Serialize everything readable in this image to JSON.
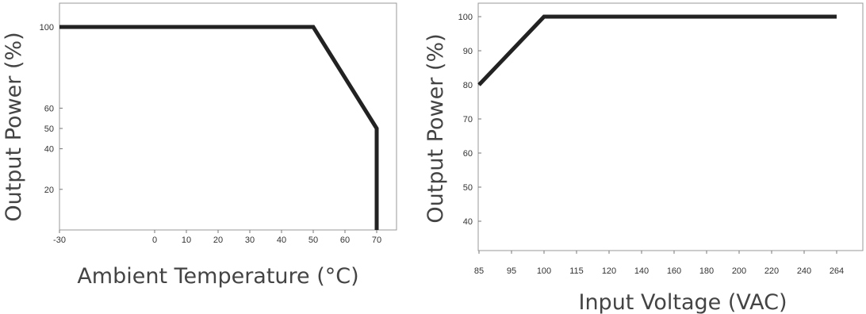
{
  "chart_data": [
    {
      "type": "line",
      "title": "",
      "xlabel": "Ambient Temperature (°C)",
      "ylabel": "Output Power (%)",
      "x_ticks": [
        "-30",
        "0",
        "10",
        "20",
        "30",
        "40",
        "50",
        "60",
        "70"
      ],
      "y_ticks": [
        "100",
        "60",
        "50",
        "40",
        "20"
      ],
      "xlim": [
        -30,
        70
      ],
      "ylim": [
        0,
        100
      ],
      "grid": false,
      "series": [
        {
          "x": [
            -30,
            50,
            70,
            70
          ],
          "y": [
            100,
            100,
            50,
            0
          ]
        }
      ],
      "colors": {
        "line": "#222222"
      }
    },
    {
      "type": "line",
      "title": "",
      "xlabel": "Input Voltage (VAC)",
      "ylabel": "Output Power (%)",
      "x_ticks": [
        "85",
        "95",
        "100",
        "115",
        "120",
        "140",
        "160",
        "180",
        "200",
        "220",
        "240",
        "264"
      ],
      "y_ticks": [
        "100",
        "90",
        "80",
        "70",
        "60",
        "50",
        "40"
      ],
      "ylim": [
        30,
        100
      ],
      "grid": false,
      "series": [
        {
          "x": [
            85,
            100,
            264
          ],
          "y": [
            80,
            100,
            100
          ]
        }
      ],
      "colors": {
        "line": "#222222"
      }
    }
  ]
}
